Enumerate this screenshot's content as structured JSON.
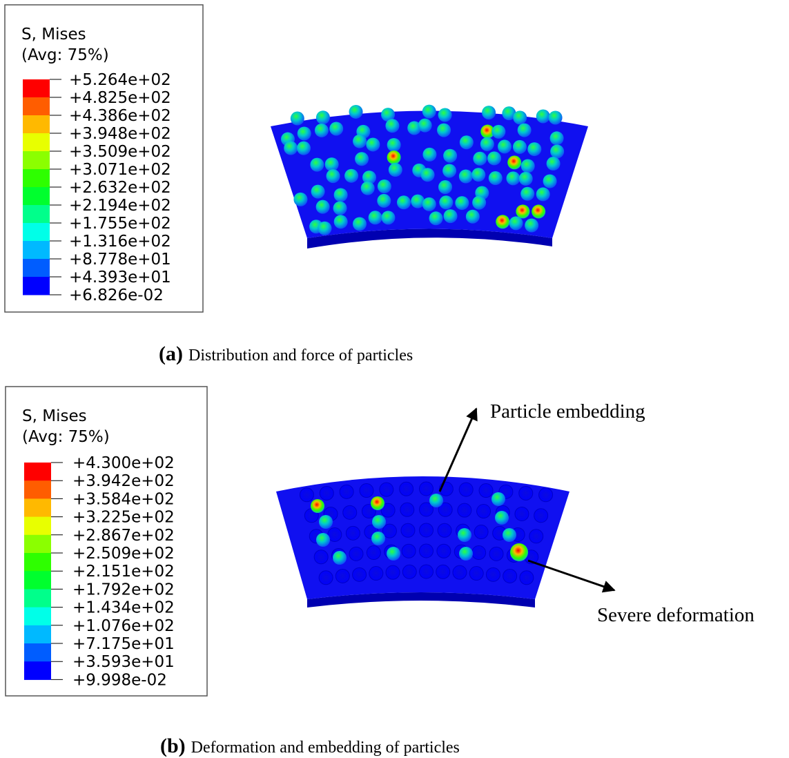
{
  "panels": [
    {
      "legend": {
        "title": "S, Mises",
        "subtitle": "(Avg: 75%)",
        "labels": [
          "+5.264e+02",
          "+4.825e+02",
          "+4.386e+02",
          "+3.948e+02",
          "+3.509e+02",
          "+3.071e+02",
          "+2.632e+02",
          "+2.194e+02",
          "+1.755e+02",
          "+1.316e+02",
          "+8.778e+01",
          "+4.393e+01",
          "+6.826e-02"
        ],
        "colors": [
          "#ff0000",
          "#ff5d00",
          "#ffb900",
          "#e8ff00",
          "#8bff00",
          "#2eff00",
          "#00ff2e",
          "#00ff8b",
          "#00ffe8",
          "#00b9ff",
          "#005dff",
          "#0000ff"
        ]
      },
      "caption": {
        "tag": "(a)",
        "text": "Distribution and force of particles"
      }
    },
    {
      "legend": {
        "title": "S, Mises",
        "subtitle": "(Avg: 75%)",
        "labels": [
          "+4.300e+02",
          "+3.942e+02",
          "+3.584e+02",
          "+3.225e+02",
          "+2.867e+02",
          "+2.509e+02",
          "+2.151e+02",
          "+1.792e+02",
          "+1.434e+02",
          "+1.076e+02",
          "+7.175e+01",
          "+3.593e+01",
          "+9.998e-02"
        ],
        "colors": [
          "#ff0000",
          "#ff5d00",
          "#ffb900",
          "#e8ff00",
          "#8bff00",
          "#2eff00",
          "#00ff2e",
          "#00ff8b",
          "#00ffe8",
          "#00b9ff",
          "#005dff",
          "#0000ff"
        ]
      },
      "caption": {
        "tag": "(b)",
        "text": "Deformation and embedding of particles"
      },
      "annotations": [
        "Particle embedding",
        "Severe deformation"
      ]
    }
  ]
}
